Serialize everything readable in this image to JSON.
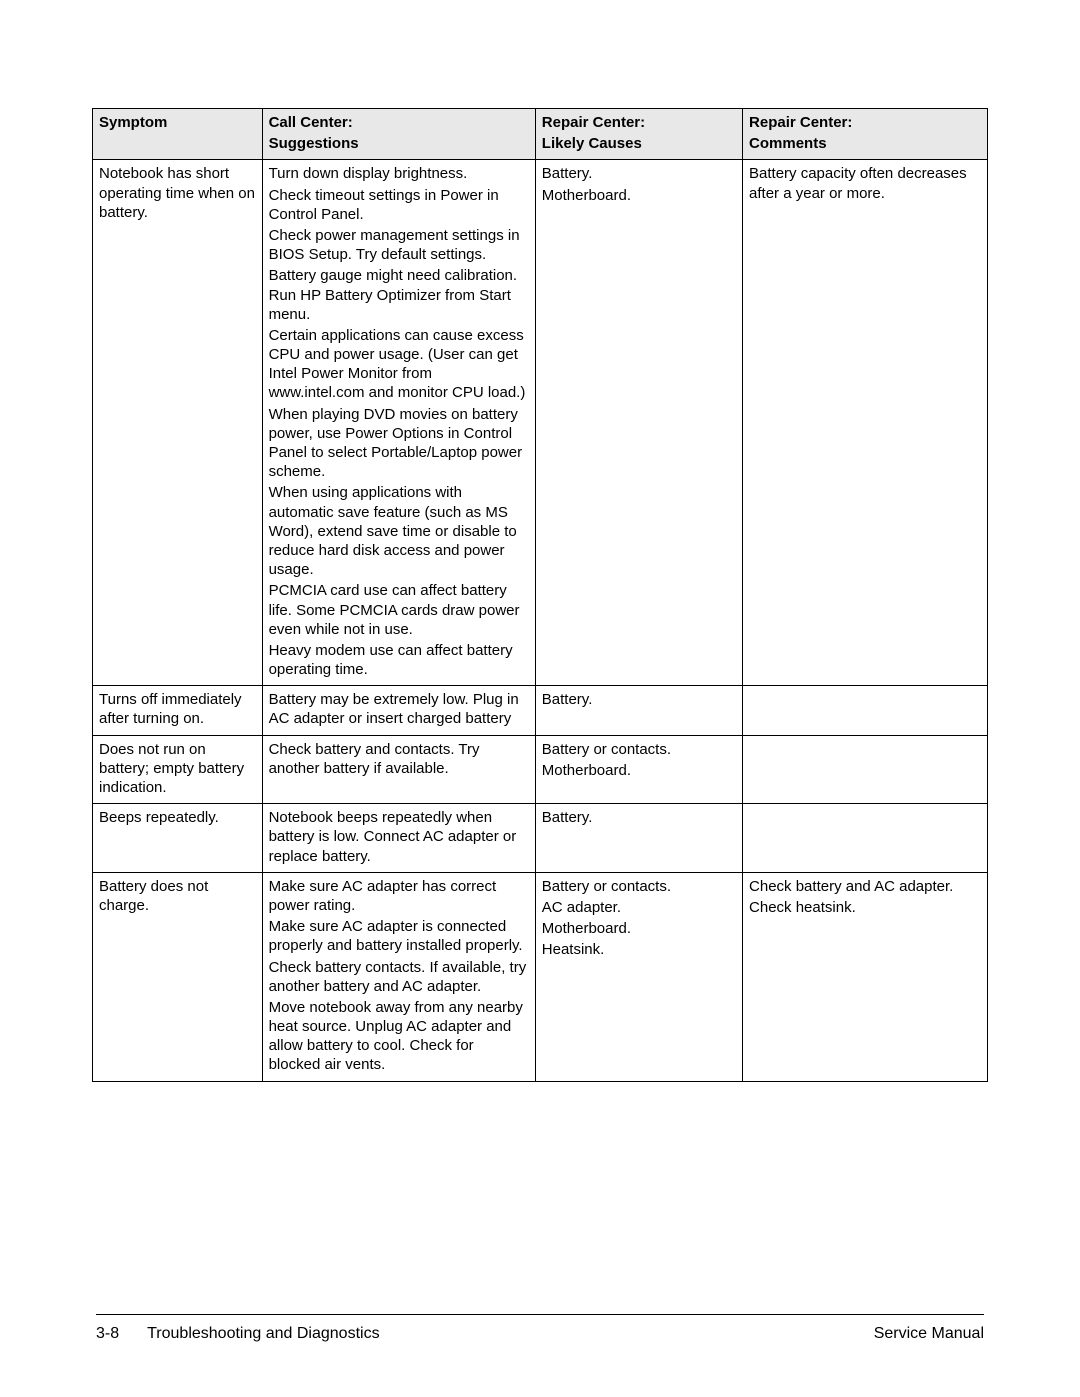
{
  "table": {
    "col_widths_pct": [
      18,
      29,
      22,
      26
    ],
    "header_bg": "#e8e8e8",
    "border_color": "#000000",
    "headers": [
      {
        "l1": "",
        "l2": "Symptom"
      },
      {
        "l1": "Call Center:",
        "l2": "Suggestions"
      },
      {
        "l1": "Repair Center:",
        "l2": "Likely Causes"
      },
      {
        "l1": "Repair Center:",
        "l2": "Comments"
      }
    ],
    "rows": [
      {
        "symptom": [
          "Notebook has short operating time when on battery."
        ],
        "suggestions": [
          "Turn down display brightness.",
          "Check timeout settings in Power in Control Panel.",
          "Check power management settings in BIOS Setup. Try default settings.",
          "Battery gauge might need calibration. Run HP Battery Optimizer from Start menu.",
          "Certain applications can cause excess CPU and power usage. (User can get Intel Power Monitor from www.intel.com and monitor CPU load.)",
          "When playing DVD movies on battery power, use Power Options in Control Panel to select Portable/Laptop power scheme.",
          "When using applications with automatic save feature (such as MS Word), extend save time or disable to reduce hard disk access and power usage.",
          "PCMCIA card use can affect battery life. Some PCMCIA cards draw power even while not in use.",
          "Heavy modem use can affect battery operating time."
        ],
        "causes": [
          "Battery.",
          "Motherboard."
        ],
        "comments": [
          "Battery capacity often decreases after a year or more."
        ]
      },
      {
        "symptom": [
          "Turns off immediately after turning on."
        ],
        "suggestions": [
          "Battery may be extremely low. Plug in AC adapter or insert charged battery"
        ],
        "causes": [
          "Battery."
        ],
        "comments": []
      },
      {
        "symptom": [
          "Does not run on battery; empty battery indication."
        ],
        "suggestions": [
          "Check battery and contacts. Try another battery if available."
        ],
        "causes": [
          "Battery or contacts.",
          "Motherboard."
        ],
        "comments": []
      },
      {
        "symptom": [
          "Beeps repeatedly."
        ],
        "suggestions": [
          "Notebook beeps repeatedly when battery is low. Connect AC adapter or replace battery."
        ],
        "causes": [
          "Battery."
        ],
        "comments": []
      },
      {
        "symptom": [
          "Battery does not charge."
        ],
        "suggestions": [
          "Make sure AC adapter has correct power rating.",
          "Make sure AC adapter is connected properly and battery installed properly.",
          "Check battery contacts. If available, try another battery and AC adapter.",
          "Move notebook away from any nearby heat source. Unplug AC adapter and allow battery to cool. Check for blocked air vents."
        ],
        "causes": [
          "Battery or contacts.",
          "AC adapter.",
          "Motherboard.",
          "Heatsink."
        ],
        "comments": [
          "Check battery and AC adapter.",
          "Check heatsink."
        ]
      }
    ]
  },
  "footer": {
    "page_number": "3-8",
    "section_title": "Troubleshooting and Diagnostics",
    "manual_title": "Service Manual"
  }
}
